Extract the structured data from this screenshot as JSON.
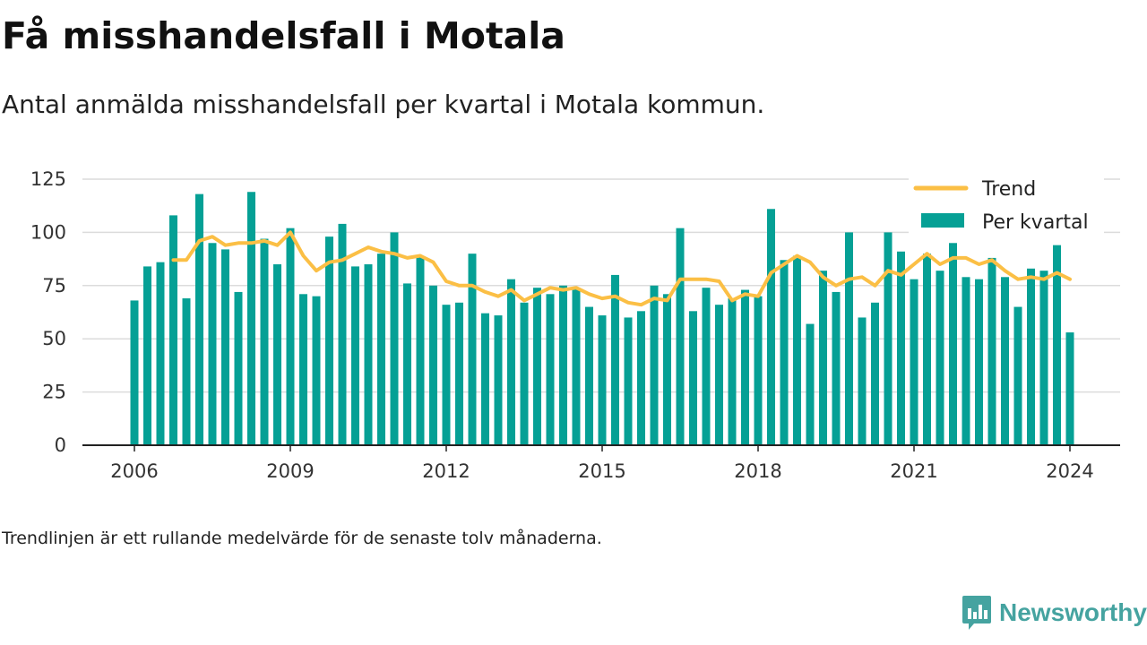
{
  "header": {
    "title": "Få misshandelsfall i Motala",
    "subtitle": "Antal anmälda misshandelsfall per kvartal i Motala kommun."
  },
  "footnote": "Trendlinjen är ett rullande medelvärde för de senaste tolv månaderna.",
  "brand": {
    "name": "Newsworthy",
    "icon": "newsworthy-logo-icon"
  },
  "colors": {
    "bar": "#05a095",
    "trend": "#fbbf45",
    "grid": "#dcdcdc",
    "axis": "#222222",
    "brand": "#45a3a0"
  },
  "chart_data": {
    "type": "bar",
    "title": "Få misshandelsfall i Motala",
    "xlabel": "",
    "ylabel": "",
    "ylim": [
      0,
      125
    ],
    "yticks": [
      0,
      25,
      50,
      75,
      100,
      125
    ],
    "xticks": [
      "2006",
      "2009",
      "2012",
      "2015",
      "2018",
      "2021",
      "2024"
    ],
    "grid": true,
    "legend_position": "top-right",
    "x": [
      "2006 Q1",
      "2006 Q2",
      "2006 Q3",
      "2006 Q4",
      "2007 Q1",
      "2007 Q2",
      "2007 Q3",
      "2007 Q4",
      "2008 Q1",
      "2008 Q2",
      "2008 Q3",
      "2008 Q4",
      "2009 Q1",
      "2009 Q2",
      "2009 Q3",
      "2009 Q4",
      "2010 Q1",
      "2010 Q2",
      "2010 Q3",
      "2010 Q4",
      "2011 Q1",
      "2011 Q2",
      "2011 Q3",
      "2011 Q4",
      "2012 Q1",
      "2012 Q2",
      "2012 Q3",
      "2012 Q4",
      "2013 Q1",
      "2013 Q2",
      "2013 Q3",
      "2013 Q4",
      "2014 Q1",
      "2014 Q2",
      "2014 Q3",
      "2014 Q4",
      "2015 Q1",
      "2015 Q2",
      "2015 Q3",
      "2015 Q4",
      "2016 Q1",
      "2016 Q2",
      "2016 Q3",
      "2016 Q4",
      "2017 Q1",
      "2017 Q2",
      "2017 Q3",
      "2017 Q4",
      "2018 Q1",
      "2018 Q2",
      "2018 Q3",
      "2018 Q4",
      "2019 Q1",
      "2019 Q2",
      "2019 Q3",
      "2019 Q4",
      "2020 Q1",
      "2020 Q2",
      "2020 Q3",
      "2020 Q4",
      "2021 Q1",
      "2021 Q2",
      "2021 Q3",
      "2021 Q4",
      "2022 Q1",
      "2022 Q2",
      "2022 Q3",
      "2022 Q4",
      "2023 Q1",
      "2023 Q2",
      "2023 Q3",
      "2023 Q4",
      "2024 Q1"
    ],
    "series": [
      {
        "name": "Per kvartal",
        "type": "bar",
        "values": [
          68,
          84,
          86,
          108,
          69,
          118,
          95,
          92,
          72,
          119,
          97,
          85,
          102,
          71,
          70,
          98,
          104,
          84,
          85,
          90,
          100,
          76,
          89,
          75,
          66,
          67,
          90,
          62,
          61,
          78,
          67,
          74,
          71,
          75,
          74,
          65,
          61,
          80,
          60,
          63,
          75,
          71,
          102,
          63,
          74,
          66,
          69,
          73,
          70,
          111,
          87,
          89,
          57,
          82,
          72,
          100,
          60,
          67,
          100,
          91,
          78,
          90,
          82,
          95,
          79,
          78,
          88,
          79,
          65,
          83,
          82,
          94,
          53
        ]
      },
      {
        "name": "Trend",
        "type": "line",
        "values": [
          null,
          null,
          null,
          87,
          87,
          96,
          98,
          94,
          95,
          95,
          96,
          94,
          100,
          89,
          82,
          86,
          87,
          90,
          93,
          91,
          90,
          88,
          89,
          86,
          77,
          75,
          75,
          72,
          70,
          73,
          68,
          71,
          74,
          73,
          74,
          71,
          69,
          70,
          67,
          66,
          69,
          68,
          78,
          78,
          78,
          77,
          68,
          71,
          70,
          81,
          85,
          89,
          86,
          79,
          75,
          78,
          79,
          75,
          82,
          80,
          85,
          90,
          85,
          88,
          88,
          85,
          87,
          82,
          78,
          79,
          78,
          81,
          78
        ]
      }
    ]
  }
}
